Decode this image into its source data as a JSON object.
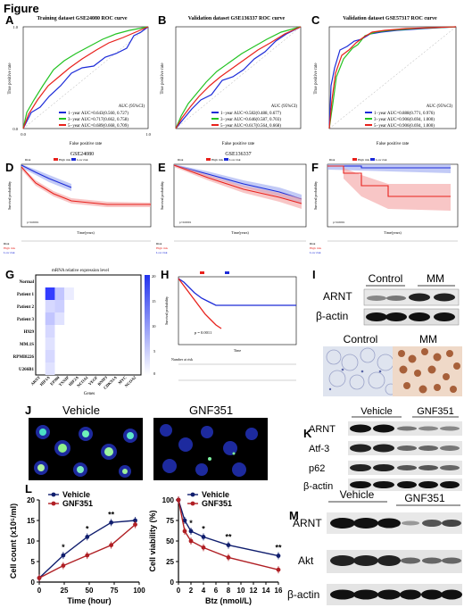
{
  "figure_title": "Figure",
  "panels": {
    "A": {
      "letter": "A",
      "title": "Training dataset GSE24080 ROC curve",
      "xlabel": "False positive rate",
      "ylabel": "True positive rate",
      "legend_title": "AUC (95%CI)",
      "legend": [
        "1−year AUC=0.643(0.560, 0.727)",
        "3−year AUC=0.717(0.662, 0.758)",
        "5−year AUC=0.689(0.668, 0.709)"
      ]
    },
    "B": {
      "letter": "B",
      "title": "Validation dataset GSE136337 ROC curve",
      "xlabel": "False positive rate",
      "ylabel": "True positive rate",
      "legend_title": "AUC (95%CI)",
      "legend": [
        "1−year AUC=0.582(0.488, 0.677)",
        "3−year AUC=0.646(0.587, 0.703)",
        "5−year AUC=0.617(0.564, 0.668)"
      ]
    },
    "C": {
      "letter": "C",
      "title": "Validation dataset GSE57317 ROC curve",
      "xlabel": "False positive rate",
      "ylabel": "True positive rate",
      "legend_title": "AUC (95%CI)",
      "legend": [
        "1−year AUC=0.888(0.771, 0.976)",
        "3−year AUC=0.906(0.694, 1.000)",
        "5−year AUC=0.906(0.694, 1.000)"
      ]
    },
    "D": {
      "letter": "D",
      "title": "GSE24080",
      "ylabel": "Survival probability",
      "xlabel": "Time(years)",
      "pval": "p<0.0001",
      "risk": "Risk",
      "high": "High risk",
      "low": "Low risk"
    },
    "E": {
      "letter": "E",
      "title": "GSE136337",
      "ylabel": "Survival probability",
      "xlabel": "Time(years)",
      "pval": "p<0.0001",
      "risk": "Risk",
      "high": "High risk",
      "low": "Low risk"
    },
    "F": {
      "letter": "F",
      "ylabel": "Survival probability",
      "xlabel": "Time(years)",
      "pval": "p<0.0001",
      "risk": "Risk",
      "high": "High risk",
      "low": "Low risk"
    },
    "G": {
      "letter": "G",
      "title": "mRNA relative expression level",
      "xlabel": "Genes",
      "rows": [
        "Normal",
        "Patient 1",
        "Patient 2",
        "Patient 3",
        "H929",
        "MM.1S",
        "RPMI8226",
        "U266B1"
      ],
      "cols": [
        "ARNT",
        "HIF1A",
        "EP300",
        "TXNIP",
        "HIF2A",
        "NCOA1",
        "VEGF",
        "BNIP3",
        "CDKN1A",
        "MYC",
        "NCOA2"
      ],
      "scale": [
        "20",
        "15",
        "10",
        "5",
        "0"
      ]
    },
    "H": {
      "letter": "H",
      "ylabel": "Survival probability",
      "xlabel": "Time",
      "pval": "p = 0.0011",
      "risk": "Number at risk"
    },
    "I": {
      "letter": "I",
      "control": "Control",
      "mm": "MM",
      "actin": "β-actin",
      "arnt": "ARNT"
    },
    "J": {
      "letter": "J",
      "vehicle": "Vehicle",
      "gnf": "GNF351"
    },
    "K": {
      "letter": "K",
      "vehicle": "Vehicle",
      "gnf": "GNF351",
      "rows": [
        "ARNT",
        "Atf-3",
        "p62",
        "β-actin"
      ]
    },
    "L": {
      "letter": "L",
      "vehicle": "Vehicle",
      "gnf": "GNF351",
      "left_ylabel": "Cell count (x10⁵/ml)",
      "left_xlabel": "Time (hour)",
      "right_ylabel": "Cell viability (%)",
      "right_xlabel": "Btz (nmol/L)"
    },
    "M": {
      "letter": "M",
      "vehicle": "Vehicle",
      "gnf": "GNF351",
      "rows": [
        "ARNT",
        "Akt",
        "β-actin"
      ]
    }
  },
  "chart_data": [
    {
      "type": "line",
      "panel": "L-left",
      "xlabel": "Time (hour)",
      "ylabel": "Cell count (x10⁵/ml)",
      "xlim": [
        0,
        100
      ],
      "ylim": [
        0,
        20
      ],
      "xticks": [
        "0",
        "25",
        "50",
        "75",
        "100"
      ],
      "yticks": [
        "0",
        "5",
        "10",
        "15",
        "20"
      ],
      "x": [
        0,
        24,
        48,
        72,
        96
      ],
      "series": [
        {
          "name": "Vehicle",
          "values": [
            1,
            6.5,
            11,
            14.5,
            15
          ]
        },
        {
          "name": "GNF351",
          "values": [
            1,
            4,
            6.5,
            9,
            14
          ]
        }
      ],
      "significance": [
        "*",
        "*",
        "**",
        ""
      ]
    },
    {
      "type": "line",
      "panel": "L-right",
      "xlabel": "Btz (nmol/L)",
      "ylabel": "Cell viability (%)",
      "xlim": [
        0,
        16
      ],
      "ylim": [
        0,
        100
      ],
      "xticks": [
        "0",
        "2",
        "4",
        "6",
        "8",
        "10",
        "12",
        "14",
        "16"
      ],
      "yticks": [
        "0",
        "25",
        "50",
        "75",
        "100"
      ],
      "x": [
        0,
        1,
        2,
        4,
        8,
        16
      ],
      "series": [
        {
          "name": "Vehicle",
          "values": [
            100,
            75,
            62,
            55,
            45,
            32
          ]
        },
        {
          "name": "GNF351",
          "values": [
            100,
            62,
            50,
            42,
            30,
            15
          ]
        }
      ],
      "significance": [
        "",
        "*",
        "*",
        "**",
        "**"
      ]
    }
  ],
  "colors": {
    "red": "#e8211c",
    "blue": "#1c2bd8",
    "green": "#23c322",
    "navy": "#101e6e",
    "darkred": "#b01f24"
  }
}
